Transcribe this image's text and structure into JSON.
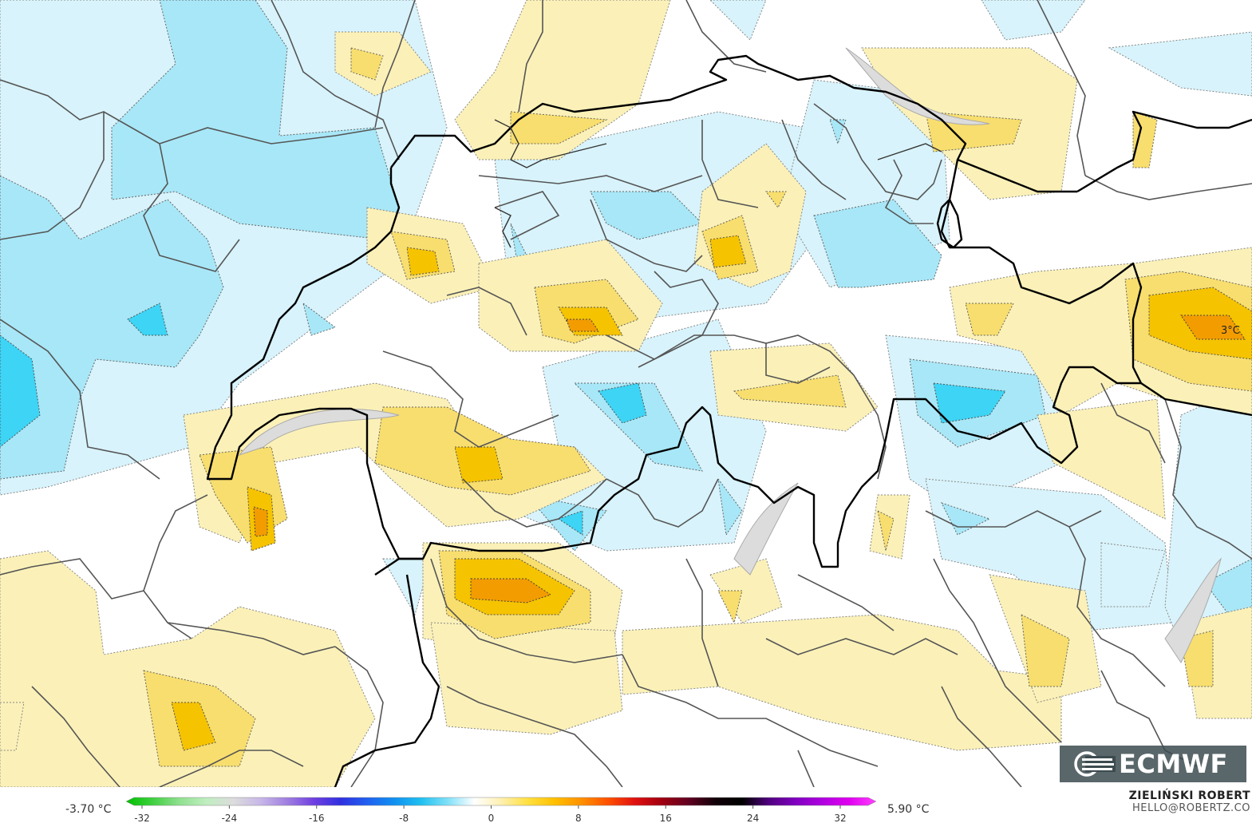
{
  "map": {
    "region": "Switzerland",
    "variable": "temperature anomaly",
    "value_label": "3°C",
    "colors": {
      "light_blue": "#d8f3fb",
      "blue": "#a8e7f7",
      "deep_blue": "#3dd4f5",
      "light_yellow": "#fbf1b8",
      "yellow": "#f8de6e",
      "orange": "#f5c300",
      "deep_orange": "#f39c00",
      "border_national": "#000000",
      "border_regional": "#555555",
      "lake": "#dcdcdc"
    }
  },
  "scale": {
    "min_label": "-3.70 °C",
    "max_label": "5.90 °C",
    "ticks": [
      "-32",
      "-24",
      "-16",
      "-8",
      "0",
      "8",
      "16",
      "24",
      "32"
    ],
    "stops": [
      "#00c000",
      "#40d040",
      "#90e090",
      "#c0eec0",
      "#dcdcdc",
      "#c8b8e8",
      "#a080e0",
      "#7040e0",
      "#3030e0",
      "#2060f0",
      "#1090f0",
      "#20c0f0",
      "#80e0f8",
      "#ffffff",
      "#fff0b0",
      "#ffe040",
      "#ffc000",
      "#ff9000",
      "#ff5000",
      "#e01010",
      "#a00010",
      "#600020",
      "#100008",
      "#000000",
      "#500080",
      "#8000c0",
      "#b000e0",
      "#e000f0",
      "#ff40ff"
    ]
  },
  "author": {
    "name": "ZIELIŃSKI ROBERT",
    "email": "HELLO@ROBERTZ.CO"
  },
  "logo": {
    "text": "ECMWF",
    "icon": "ecmwf-logo-icon"
  }
}
